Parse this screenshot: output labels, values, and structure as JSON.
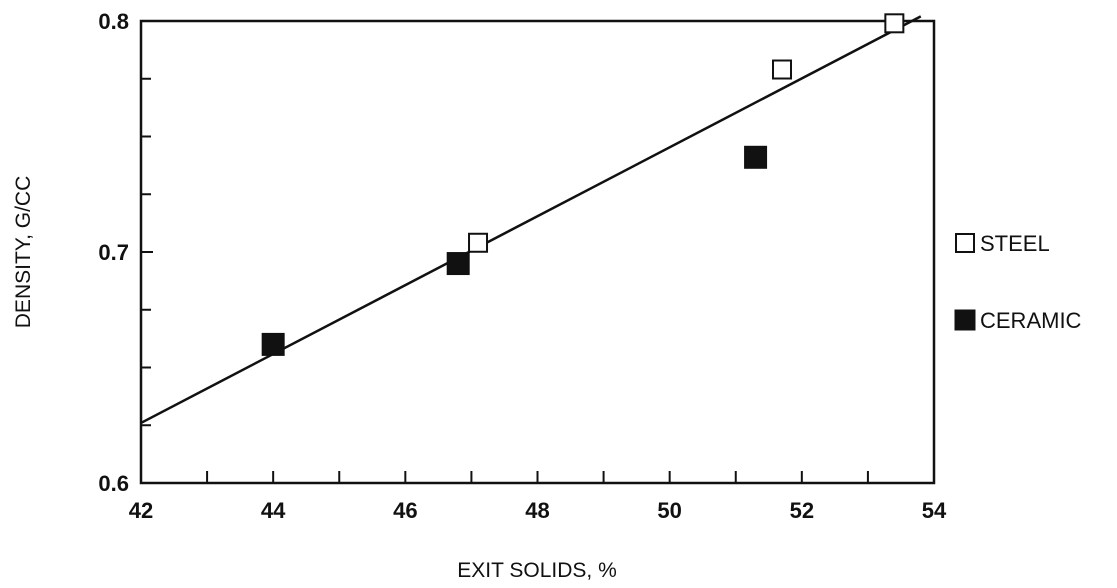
{
  "chart_data": {
    "type": "scatter",
    "title": "",
    "xlabel": "EXIT SOLIDS,  %",
    "ylabel": "DENSITY,  G/CC",
    "xlim": [
      42,
      54
    ],
    "ylim": [
      0.6,
      0.8
    ],
    "x_ticks": [
      42,
      44,
      46,
      48,
      50,
      52,
      54
    ],
    "x_tick_labels": [
      "42",
      "44",
      "46",
      "48",
      "50",
      "52",
      "54"
    ],
    "y_ticks": [
      0.6,
      0.7,
      0.8
    ],
    "y_tick_labels": [
      "0.6",
      "0.7",
      "0.8"
    ],
    "grid": false,
    "legend_position": "right",
    "series": [
      {
        "name": "STEEL",
        "marker": "open-square",
        "color": "#111111",
        "points": [
          {
            "x": 47.1,
            "y": 0.704
          },
          {
            "x": 51.7,
            "y": 0.779
          },
          {
            "x": 53.4,
            "y": 0.799
          }
        ]
      },
      {
        "name": "CERAMIC",
        "marker": "filled-square",
        "color": "#111111",
        "points": [
          {
            "x": 44.0,
            "y": 0.66
          },
          {
            "x": 46.8,
            "y": 0.695
          },
          {
            "x": 51.3,
            "y": 0.741
          }
        ]
      }
    ],
    "fit_line": {
      "type": "linear",
      "points": [
        {
          "x": 42.0,
          "y": 0.626
        },
        {
          "x": 53.8,
          "y": 0.802
        }
      ]
    }
  }
}
